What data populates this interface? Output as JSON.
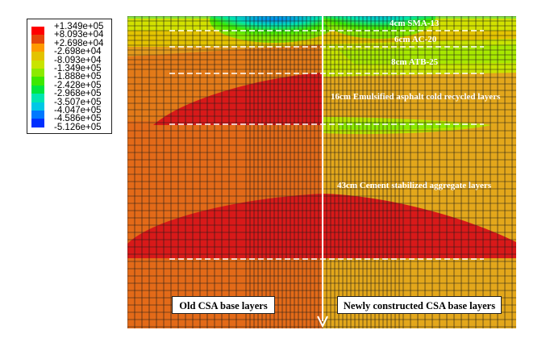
{
  "legend": {
    "entries": [
      {
        "label": "+1.349e+05",
        "color": "#ff0000"
      },
      {
        "label": "+8.093e+04",
        "color": "#e5460a"
      },
      {
        "label": "+2.698e+04",
        "color": "#ff9a00"
      },
      {
        "label": "-2.698e+04",
        "color": "#e3c300"
      },
      {
        "label": "-8.093e+04",
        "color": "#c8e400"
      },
      {
        "label": "-1.349e+05",
        "color": "#8cea00"
      },
      {
        "label": "-1.888e+05",
        "color": "#3ee800"
      },
      {
        "label": "-2.428e+05",
        "color": "#00e640"
      },
      {
        "label": "-2.968e+05",
        "color": "#00e6b0"
      },
      {
        "label": "-3.507e+05",
        "color": "#00c8e6"
      },
      {
        "label": "-4.047e+05",
        "color": "#0078ff"
      },
      {
        "label": "-4.586e+05",
        "color": "#0030ff"
      },
      {
        "label": "-5.126e+05",
        "color": "#0000c8"
      }
    ]
  },
  "layers": {
    "sma": "4cm SMA-13",
    "ac": "6cm AC-20",
    "atb": "8cm ATB-25",
    "emulsified": "16cm Emulsified asphalt cold recycled layers",
    "cement": "43cm Cement stabilized aggregate layers"
  },
  "panels": {
    "left": "Old CSA base layers",
    "right": "Newly constructed CSA base layers"
  },
  "colors": {
    "mesh": "#1a1a1a",
    "old_base": "#e36a18",
    "new_base": "#e3a71b",
    "high_stress": "#d81919",
    "arrow": "#ffffff"
  }
}
